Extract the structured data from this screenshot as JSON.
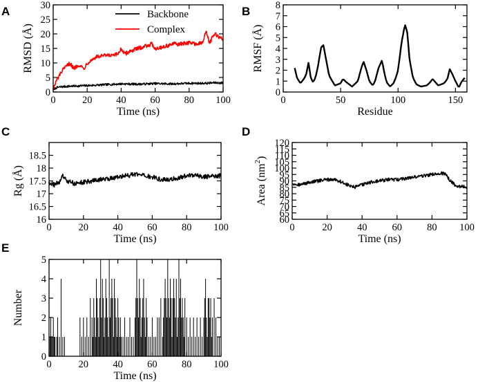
{
  "chart_data": [
    {
      "id": "A",
      "panel_label": "A",
      "type": "line",
      "xlabel": "Time (ns)",
      "ylabel": "RMSD (Å)",
      "xlim": [
        0,
        100
      ],
      "ylim": [
        0,
        30
      ],
      "xticks": [
        0,
        20,
        40,
        60,
        80,
        100
      ],
      "yticks": [
        0,
        5,
        10,
        15,
        20,
        25,
        30
      ],
      "legend_position": "top-right",
      "series": [
        {
          "name": "Backbone",
          "color": "#000000",
          "noise": 0.35,
          "x": [
            0,
            2,
            5,
            10,
            20,
            30,
            40,
            50,
            60,
            70,
            80,
            90,
            95,
            100
          ],
          "y": [
            0.8,
            1.5,
            1.8,
            2.0,
            2.2,
            2.5,
            2.8,
            2.7,
            2.9,
            2.8,
            3.0,
            3.0,
            3.2,
            3.1
          ]
        },
        {
          "name": "Complex",
          "color": "#ff0000",
          "noise": 0.7,
          "x": [
            0,
            2,
            5,
            8,
            10,
            12,
            15,
            18,
            20,
            25,
            30,
            35,
            38,
            40,
            42,
            45,
            50,
            55,
            58,
            60,
            65,
            70,
            75,
            80,
            85,
            88,
            90,
            92,
            95,
            100
          ],
          "y": [
            1,
            4,
            7,
            9,
            10,
            8,
            9.5,
            8,
            10,
            12,
            12.5,
            12.5,
            13,
            15,
            13,
            14,
            15,
            16,
            16.5,
            15,
            15.5,
            16.5,
            16.5,
            17,
            16.5,
            17,
            21,
            17,
            20,
            18
          ]
        }
      ]
    },
    {
      "id": "B",
      "panel_label": "B",
      "type": "line",
      "xlabel": "Residue",
      "ylabel": "RMSF (Å)",
      "xlim": [
        0,
        160
      ],
      "ylim": [
        0,
        8
      ],
      "xticks": [
        0,
        50,
        100,
        150
      ],
      "yticks": [
        0,
        1,
        2,
        3,
        4,
        5,
        6,
        7,
        8
      ],
      "series": [
        {
          "name": "RMSF",
          "color": "#000000",
          "noise": 0,
          "x": [
            10,
            12,
            15,
            18,
            20,
            22,
            24,
            26,
            28,
            30,
            33,
            35,
            38,
            40,
            45,
            50,
            52,
            55,
            60,
            65,
            68,
            70,
            73,
            75,
            78,
            80,
            83,
            86,
            88,
            90,
            93,
            96,
            98,
            100,
            103,
            106,
            108,
            110,
            113,
            116,
            120,
            125,
            128,
            130,
            135,
            140,
            143,
            145,
            147,
            150,
            153,
            155,
            158
          ],
          "y": [
            2.2,
            1.3,
            0.8,
            1.2,
            1.6,
            2.7,
            1.3,
            0.9,
            1.3,
            2.2,
            4.1,
            4.3,
            2.6,
            1.5,
            0.6,
            0.8,
            1.2,
            0.9,
            0.5,
            1.0,
            2.2,
            2.8,
            1.8,
            1.0,
            0.6,
            1.0,
            2.2,
            2.9,
            1.8,
            0.9,
            0.5,
            0.8,
            1.3,
            2.0,
            4.5,
            6.2,
            5.5,
            3.0,
            1.3,
            0.7,
            0.5,
            0.6,
            0.9,
            1.2,
            0.6,
            0.8,
            1.2,
            2.1,
            1.7,
            1.0,
            0.4,
            0.9,
            1.3
          ]
        }
      ]
    },
    {
      "id": "C",
      "panel_label": "C",
      "type": "line",
      "xlabel": "Time (ns)",
      "ylabel": "Rg (Å)",
      "xlim": [
        0,
        100
      ],
      "ylim": [
        16,
        19
      ],
      "xticks": [
        0,
        20,
        40,
        60,
        80,
        100
      ],
      "yticks": [
        16,
        16.5,
        17,
        17.5,
        18,
        18.5
      ],
      "series": [
        {
          "name": "Rg",
          "color": "#000000",
          "noise": 0.09,
          "x": [
            0,
            3,
            6,
            8,
            10,
            15,
            20,
            25,
            30,
            35,
            40,
            45,
            50,
            55,
            60,
            65,
            70,
            75,
            80,
            85,
            90,
            95,
            100
          ],
          "y": [
            17.45,
            17.35,
            17.45,
            17.7,
            17.5,
            17.4,
            17.45,
            17.5,
            17.55,
            17.6,
            17.65,
            17.7,
            17.75,
            17.7,
            17.65,
            17.55,
            17.55,
            17.6,
            17.7,
            17.75,
            17.65,
            17.7,
            17.7
          ]
        }
      ]
    },
    {
      "id": "D",
      "panel_label": "D",
      "type": "line",
      "xlabel": "Time (ns)",
      "ylabel": "Area (nm²)",
      "ylabel_text": "Area (nm",
      "ylabel_sup": "2",
      "ylabel_end": ")",
      "xlim": [
        0,
        100
      ],
      "ylim": [
        60,
        120
      ],
      "xticks": [
        0,
        20,
        40,
        60,
        80,
        100
      ],
      "yticks": [
        60,
        65,
        70,
        75,
        80,
        85,
        90,
        95,
        100,
        105,
        110,
        115,
        120
      ],
      "series": [
        {
          "name": "Area",
          "color": "#000000",
          "noise": 1.3,
          "x": [
            0,
            5,
            10,
            15,
            20,
            25,
            30,
            33,
            36,
            40,
            45,
            50,
            55,
            60,
            65,
            70,
            75,
            80,
            85,
            88,
            90,
            93,
            95,
            100
          ],
          "y": [
            88,
            87,
            89,
            90,
            91,
            91,
            88,
            86,
            85,
            87,
            89,
            90,
            91,
            91,
            92,
            93,
            94,
            95,
            96,
            95,
            91,
            87,
            86,
            85
          ]
        }
      ]
    },
    {
      "id": "E",
      "panel_label": "E",
      "type": "impulse",
      "xlabel": "Time (ns)",
      "ylabel": "Number",
      "xlim": [
        0,
        100
      ],
      "ylim": [
        0,
        5
      ],
      "xticks": [
        0,
        20,
        40,
        60,
        80,
        100
      ],
      "yticks": [
        0,
        1,
        2,
        3,
        4,
        5
      ],
      "series": [
        {
          "name": "Number",
          "color": "#000000",
          "x": [
            0.5,
            1,
            1.5,
            2,
            2.5,
            3,
            3.5,
            4,
            4.5,
            5,
            6,
            7,
            8,
            9,
            18,
            19,
            20,
            21,
            22,
            23,
            24,
            25,
            25.5,
            26,
            26.5,
            27,
            27.5,
            28,
            28.5,
            29,
            29.5,
            30,
            30.5,
            31,
            31.5,
            32,
            32.5,
            33,
            33.5,
            34,
            34.5,
            35,
            35.5,
            36,
            36.5,
            37,
            37.5,
            38,
            38.5,
            39,
            39.5,
            40,
            40.5,
            41,
            41.5,
            42,
            43,
            44,
            45,
            46,
            47,
            48,
            49,
            50,
            50.5,
            51,
            51.5,
            52,
            52.5,
            53,
            53.5,
            54,
            54.5,
            55,
            55.5,
            56,
            56.5,
            57,
            58,
            59,
            60,
            61,
            62,
            63,
            64,
            65,
            66,
            66.5,
            67,
            67.5,
            68,
            68.5,
            69,
            69.5,
            70,
            70.5,
            71,
            71.5,
            72,
            72.5,
            73,
            73.5,
            74,
            74.5,
            75,
            75.5,
            76,
            76.5,
            77,
            77.5,
            78,
            78.5,
            79,
            80,
            81,
            82,
            83,
            84,
            85,
            86,
            87,
            88,
            89,
            90,
            90.5,
            91,
            91.5,
            92,
            92.5,
            93,
            93.5,
            94,
            94.5,
            95,
            96,
            97,
            98,
            99
          ],
          "y": [
            1,
            2,
            1,
            1,
            2,
            1,
            1,
            0,
            1,
            2,
            1,
            4,
            1,
            1,
            2,
            1,
            2,
            1,
            2,
            1,
            3,
            2,
            1,
            3,
            2,
            1,
            4,
            3,
            2,
            1,
            3,
            5,
            2,
            4,
            3,
            1,
            2,
            4,
            3,
            2,
            1,
            5,
            2,
            3,
            4,
            3,
            1,
            4,
            3,
            2,
            1,
            3,
            2,
            1,
            2,
            1,
            1,
            2,
            1,
            1,
            2,
            1,
            1,
            2,
            3,
            5,
            3,
            2,
            4,
            3,
            1,
            2,
            3,
            4,
            2,
            1,
            3,
            2,
            1,
            1,
            2,
            1,
            1,
            2,
            2,
            3,
            1,
            2,
            3,
            4,
            3,
            2,
            5,
            3,
            2,
            4,
            3,
            1,
            3,
            4,
            3,
            2,
            4,
            1,
            2,
            5,
            3,
            4,
            2,
            3,
            2,
            1,
            3,
            2,
            1,
            2,
            1,
            2,
            1,
            2,
            1,
            2,
            1,
            2,
            3,
            4,
            2,
            1,
            3,
            3,
            2,
            3,
            1,
            2,
            3,
            2,
            1,
            1
          ]
        }
      ]
    }
  ]
}
